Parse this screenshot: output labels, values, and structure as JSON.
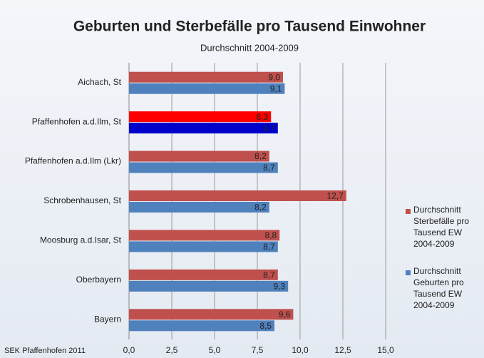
{
  "chart_data": {
    "type": "bar",
    "orientation": "horizontal",
    "title": "Geburten und Sterbefälle pro Tausend Einwohner",
    "subtitle": "Durchschnitt 2004-2009",
    "footer": "SEK Pfaffenhofen 2011",
    "categories": [
      "Aichach, St",
      "Pfaffenhofen a.d.Ilm, St",
      "Pfaffenhofen a.d.Ilm (Lkr)",
      "Schrobenhausen, St",
      "Moosburg a.d.Isar, St",
      "Oberbayern",
      "Bayern"
    ],
    "series": [
      {
        "name": "Durchschnitt Sterbefälle pro Tausend EW 2004-2009",
        "color": "#c0504d",
        "colors": [
          "#c0504d",
          "#ff0000",
          "#c0504d",
          "#c0504d",
          "#c0504d",
          "#c0504d",
          "#c0504d"
        ],
        "values": [
          9.0,
          8.3,
          8.2,
          12.7,
          8.8,
          8.7,
          9.6
        ],
        "value_labels": [
          "9,0",
          "8,3",
          "8,2",
          "12,7",
          "8,8",
          "8,7",
          "9,6"
        ]
      },
      {
        "name": "Durchschnitt Geburten pro Tausend EW 2004-2009",
        "color": "#4f81bd",
        "colors": [
          "#4f81bd",
          "#0000cc",
          "#4f81bd",
          "#4f81bd",
          "#4f81bd",
          "#4f81bd",
          "#4f81bd"
        ],
        "values": [
          9.1,
          8.7,
          8.7,
          8.2,
          8.7,
          9.3,
          8.5
        ],
        "value_labels": [
          "9,1",
          "8,7",
          "8,7",
          "8,2",
          "8,7",
          "9,3",
          "8,5"
        ]
      }
    ],
    "xlim": [
      0,
      15
    ],
    "xticks": [
      {
        "value": 0,
        "label": "0,0"
      },
      {
        "value": 2.5,
        "label": "2,5"
      },
      {
        "value": 5,
        "label": "5,0"
      },
      {
        "value": 7.5,
        "label": "7,5"
      },
      {
        "value": 10,
        "label": "10,0"
      },
      {
        "value": 12.5,
        "label": "12,5"
      },
      {
        "value": 15,
        "label": "15,0"
      }
    ],
    "grid": true,
    "legend": "right"
  }
}
